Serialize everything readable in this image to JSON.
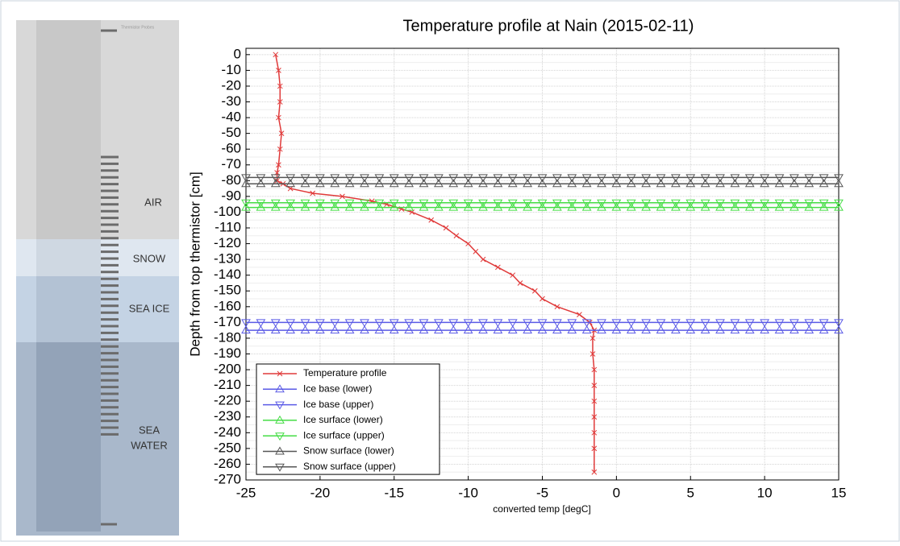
{
  "diagram": {
    "probe_label": "Thermistor Probes",
    "layers": [
      "AIR",
      "SNOW",
      "SEA ICE",
      "SEA",
      "WATER"
    ]
  },
  "chart_data": {
    "type": "line",
    "title": "Temperature profile at Nain (2015-02-11)",
    "x_label": "converted temp [degC]",
    "y_label": "Depth from top thermistor [cm]",
    "xlim": [
      -25,
      15
    ],
    "xticks": [
      -25,
      -20,
      -15,
      -10,
      -5,
      0,
      5,
      10,
      15
    ],
    "ylim": [
      -270,
      4
    ],
    "yticks": [
      0,
      -10,
      -20,
      -30,
      -40,
      -50,
      -60,
      -70,
      -80,
      -90,
      -100,
      -110,
      -120,
      -130,
      -140,
      -150,
      -160,
      -170,
      -180,
      -190,
      -200,
      -210,
      -220,
      -230,
      -240,
      -250,
      -260,
      -270
    ],
    "grid": true,
    "legend": "lower left",
    "series": [
      {
        "name": "Temperature profile",
        "color": "#e03a3a",
        "marker": "x",
        "x": [
          -23,
          -22.8,
          -22.7,
          -22.7,
          -22.8,
          -22.6,
          -22.7,
          -22.8,
          -22.9,
          -22.9,
          -22.5,
          -22,
          -20.5,
          -18.5,
          -16.5,
          -15.5,
          -14.5,
          -13.8,
          -12.5,
          -11.5,
          -10.8,
          -10,
          -9.5,
          -9,
          -8,
          -7,
          -6.5,
          -5.5,
          -5,
          -4,
          -2.5,
          -1.8,
          -1.5,
          -1.6,
          -1.6,
          -1.5,
          -1.5,
          -1.5,
          -1.5,
          -1.5,
          -1.5,
          -1.5
        ],
        "values": [
          0,
          -10,
          -20,
          -30,
          -40,
          -50,
          -60,
          -70,
          -75,
          -80,
          -82,
          -85,
          -88,
          -90,
          -93,
          -95,
          -98,
          -100,
          -105,
          -110,
          -115,
          -120,
          -125,
          -130,
          -135,
          -140,
          -145,
          -150,
          -155,
          -160,
          -165,
          -170,
          -175,
          -180,
          -190,
          -200,
          -210,
          -220,
          -230,
          -240,
          -250,
          -265
        ]
      },
      {
        "name": "Ice base (lower)",
        "color": "#5a5ae6",
        "marker": "^",
        "x": [
          -25,
          -24,
          -23,
          -22,
          -21,
          -20,
          -19,
          -18,
          -17,
          -16,
          -15,
          -14,
          -13,
          -12,
          -11,
          -10,
          -9,
          -8,
          -7,
          -6,
          -5,
          -4,
          -3,
          -2,
          -1,
          0,
          1,
          2,
          3,
          4,
          5,
          6,
          7,
          8,
          9,
          10,
          11,
          12,
          13,
          14,
          15
        ],
        "values": [
          -175,
          -175,
          -175,
          -175,
          -175,
          -175,
          -175,
          -175,
          -175,
          -175,
          -175,
          -175,
          -175,
          -175,
          -175,
          -175,
          -175,
          -175,
          -175,
          -175,
          -175,
          -175,
          -175,
          -175,
          -175,
          -175,
          -175,
          -175,
          -175,
          -175,
          -175,
          -175,
          -175,
          -175,
          -175,
          -175,
          -175,
          -175,
          -175,
          -175,
          -175
        ]
      },
      {
        "name": "Ice base (upper)",
        "color": "#5a5ae6",
        "marker": "v",
        "x": [
          -25,
          -24,
          -23,
          -22,
          -21,
          -20,
          -19,
          -18,
          -17,
          -16,
          -15,
          -14,
          -13,
          -12,
          -11,
          -10,
          -9,
          -8,
          -7,
          -6,
          -5,
          -4,
          -3,
          -2,
          -1,
          0,
          1,
          2,
          3,
          4,
          5,
          6,
          7,
          8,
          9,
          10,
          11,
          12,
          13,
          14,
          15
        ],
        "values": [
          -170,
          -170,
          -170,
          -170,
          -170,
          -170,
          -170,
          -170,
          -170,
          -170,
          -170,
          -170,
          -170,
          -170,
          -170,
          -170,
          -170,
          -170,
          -170,
          -170,
          -170,
          -170,
          -170,
          -170,
          -170,
          -170,
          -170,
          -170,
          -170,
          -170,
          -170,
          -170,
          -170,
          -170,
          -170,
          -170,
          -170,
          -170,
          -170,
          -170,
          -170
        ]
      },
      {
        "name": "Ice surface (lower)",
        "color": "#44dd44",
        "marker": "^",
        "x": [
          -25,
          -24,
          -23,
          -22,
          -21,
          -20,
          -19,
          -18,
          -17,
          -16,
          -15,
          -14,
          -13,
          -12,
          -11,
          -10,
          -9,
          -8,
          -7,
          -6,
          -5,
          -4,
          -3,
          -2,
          -1,
          0,
          1,
          2,
          3,
          4,
          5,
          6,
          7,
          8,
          9,
          10,
          11,
          12,
          13,
          14,
          15
        ],
        "values": [
          -97,
          -97,
          -97,
          -97,
          -97,
          -97,
          -97,
          -97,
          -97,
          -97,
          -97,
          -97,
          -97,
          -97,
          -97,
          -97,
          -97,
          -97,
          -97,
          -97,
          -97,
          -97,
          -97,
          -97,
          -97,
          -97,
          -97,
          -97,
          -97,
          -97,
          -97,
          -97,
          -97,
          -97,
          -97,
          -97,
          -97,
          -97,
          -97,
          -97,
          -97
        ]
      },
      {
        "name": "Ice surface (upper)",
        "color": "#44dd44",
        "marker": "v",
        "x": [
          -25,
          -24,
          -23,
          -22,
          -21,
          -20,
          -19,
          -18,
          -17,
          -16,
          -15,
          -14,
          -13,
          -12,
          -11,
          -10,
          -9,
          -8,
          -7,
          -6,
          -5,
          -4,
          -3,
          -2,
          -1,
          0,
          1,
          2,
          3,
          4,
          5,
          6,
          7,
          8,
          9,
          10,
          11,
          12,
          13,
          14,
          15
        ],
        "values": [
          -94,
          -94,
          -94,
          -94,
          -94,
          -94,
          -94,
          -94,
          -94,
          -94,
          -94,
          -94,
          -94,
          -94,
          -94,
          -94,
          -94,
          -94,
          -94,
          -94,
          -94,
          -94,
          -94,
          -94,
          -94,
          -94,
          -94,
          -94,
          -94,
          -94,
          -94,
          -94,
          -94,
          -94,
          -94,
          -94,
          -94,
          -94,
          -94,
          -94,
          -94
        ]
      },
      {
        "name": "Snow surface (lower)",
        "color": "#555555",
        "marker": "^",
        "x": [
          -25,
          -24,
          -23,
          -22,
          -21,
          -20,
          -19,
          -18,
          -17,
          -16,
          -15,
          -14,
          -13,
          -12,
          -11,
          -10,
          -9,
          -8,
          -7,
          -6,
          -5,
          -4,
          -3,
          -2,
          -1,
          0,
          1,
          2,
          3,
          4,
          5,
          6,
          7,
          8,
          9,
          10,
          11,
          12,
          13,
          14,
          15
        ],
        "values": [
          -82,
          -82,
          -82,
          -82,
          -82,
          -82,
          -82,
          -82,
          -82,
          -82,
          -82,
          -82,
          -82,
          -82,
          -82,
          -82,
          -82,
          -82,
          -82,
          -82,
          -82,
          -82,
          -82,
          -82,
          -82,
          -82,
          -82,
          -82,
          -82,
          -82,
          -82,
          -82,
          -82,
          -82,
          -82,
          -82,
          -82,
          -82,
          -82,
          -82,
          -82
        ]
      },
      {
        "name": "Snow surface (upper)",
        "color": "#555555",
        "marker": "v",
        "x": [
          -25,
          -24,
          -23,
          -22,
          -21,
          -20,
          -19,
          -18,
          -17,
          -16,
          -15,
          -14,
          -13,
          -12,
          -11,
          -10,
          -9,
          -8,
          -7,
          -6,
          -5,
          -4,
          -3,
          -2,
          -1,
          0,
          1,
          2,
          3,
          4,
          5,
          6,
          7,
          8,
          9,
          10,
          11,
          12,
          13,
          14,
          15
        ],
        "values": [
          -78,
          -78,
          -78,
          -78,
          -78,
          -78,
          -78,
          -78,
          -78,
          -78,
          -78,
          -78,
          -78,
          -78,
          -78,
          -78,
          -78,
          -78,
          -78,
          -78,
          -78,
          -78,
          -78,
          -78,
          -78,
          -78,
          -78,
          -78,
          -78,
          -78,
          -78,
          -78,
          -78,
          -78,
          -78,
          -78,
          -78,
          -78,
          -78,
          -78,
          -78
        ]
      }
    ]
  }
}
